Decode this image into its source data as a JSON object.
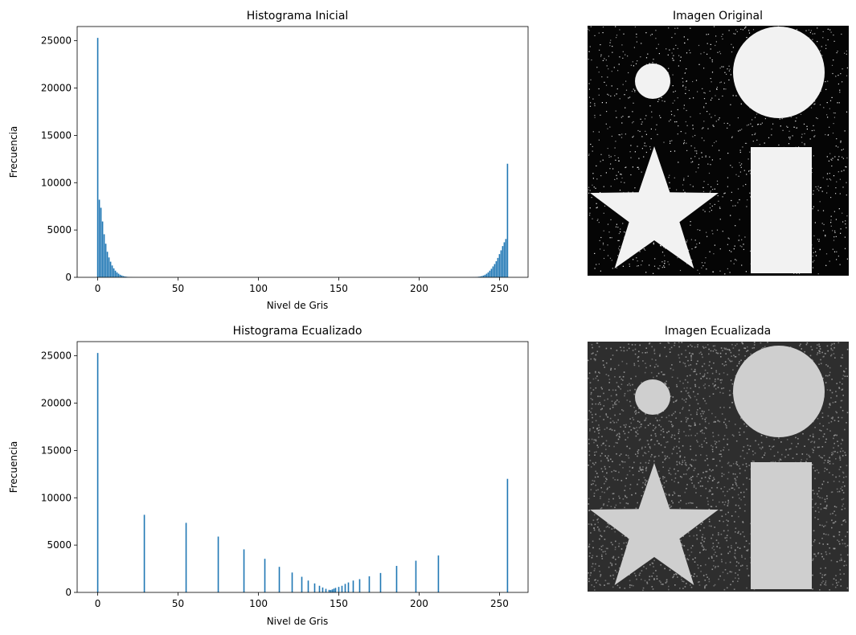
{
  "chart_data": [
    {
      "type": "bar",
      "title": "Histograma Inicial",
      "xlabel": "Nivel de Gris",
      "ylabel": "Frecuencia",
      "xlim": [
        -12.8,
        267.8
      ],
      "ylim": [
        0,
        26500
      ],
      "xticks": [
        0,
        50,
        100,
        150,
        200,
        250
      ],
      "yticks": [
        0,
        5000,
        10000,
        15000,
        20000,
        25000
      ],
      "bar_color": "#1f77b4",
      "points": [
        [
          0,
          25300
        ],
        [
          1,
          8200
        ],
        [
          2,
          7350
        ],
        [
          3,
          5900
        ],
        [
          4,
          4550
        ],
        [
          5,
          3550
        ],
        [
          6,
          2700
        ],
        [
          7,
          2100
        ],
        [
          8,
          1650
        ],
        [
          9,
          1250
        ],
        [
          10,
          950
        ],
        [
          11,
          700
        ],
        [
          12,
          520
        ],
        [
          13,
          380
        ],
        [
          14,
          270
        ],
        [
          15,
          190
        ],
        [
          16,
          130
        ],
        [
          17,
          90
        ],
        [
          18,
          60
        ],
        [
          19,
          40
        ],
        [
          20,
          25
        ],
        [
          21,
          15
        ],
        [
          22,
          10
        ],
        [
          23,
          6
        ],
        [
          24,
          4
        ],
        [
          25,
          2
        ],
        [
          230,
          2
        ],
        [
          231,
          4
        ],
        [
          232,
          6
        ],
        [
          233,
          10
        ],
        [
          234,
          15
        ],
        [
          235,
          25
        ],
        [
          236,
          40
        ],
        [
          237,
          60
        ],
        [
          238,
          90
        ],
        [
          239,
          130
        ],
        [
          240,
          190
        ],
        [
          241,
          270
        ],
        [
          242,
          380
        ],
        [
          243,
          520
        ],
        [
          244,
          700
        ],
        [
          245,
          900
        ],
        [
          246,
          1150
        ],
        [
          247,
          1400
        ],
        [
          248,
          1700
        ],
        [
          249,
          2050
        ],
        [
          250,
          2450
        ],
        [
          251,
          2850
        ],
        [
          252,
          3300
        ],
        [
          253,
          3700
        ],
        [
          254,
          4050
        ],
        [
          255,
          12000
        ]
      ]
    },
    {
      "type": "bar",
      "title": "Histograma Ecualizado",
      "xlabel": "Nivel de Gris",
      "ylabel": "Frecuencia",
      "xlim": [
        -12.8,
        267.8
      ],
      "ylim": [
        0,
        26500
      ],
      "xticks": [
        0,
        50,
        100,
        150,
        200,
        250
      ],
      "yticks": [
        0,
        5000,
        10000,
        15000,
        20000,
        25000
      ],
      "bar_color": "#1f77b4",
      "points": [
        [
          0,
          25300
        ],
        [
          29,
          8200
        ],
        [
          55,
          7350
        ],
        [
          75,
          5900
        ],
        [
          91,
          4550
        ],
        [
          104,
          3550
        ],
        [
          113,
          2700
        ],
        [
          121,
          2100
        ],
        [
          127,
          1650
        ],
        [
          131,
          1250
        ],
        [
          135,
          950
        ],
        [
          138,
          700
        ],
        [
          140,
          520
        ],
        [
          142,
          380
        ],
        [
          144,
          270
        ],
        [
          145,
          250
        ],
        [
          146,
          320
        ],
        [
          147,
          400
        ],
        [
          148,
          480
        ],
        [
          150,
          580
        ],
        [
          152,
          700
        ],
        [
          154,
          900
        ],
        [
          156,
          1050
        ],
        [
          159,
          1250
        ],
        [
          163,
          1400
        ],
        [
          169,
          1700
        ],
        [
          176,
          2050
        ],
        [
          186,
          2800
        ],
        [
          198,
          3350
        ],
        [
          212,
          3900
        ],
        [
          255,
          12000
        ]
      ]
    }
  ],
  "images": [
    {
      "title": "Imagen Original",
      "background": "#050505",
      "shape_color": "#f2f2f2",
      "noise_color": "#ffffff"
    },
    {
      "title": "Imagen Ecualizada",
      "background": "#2e2e2e",
      "shape_color": "#cfcfcf",
      "noise_color": "#9a9a9a"
    }
  ]
}
